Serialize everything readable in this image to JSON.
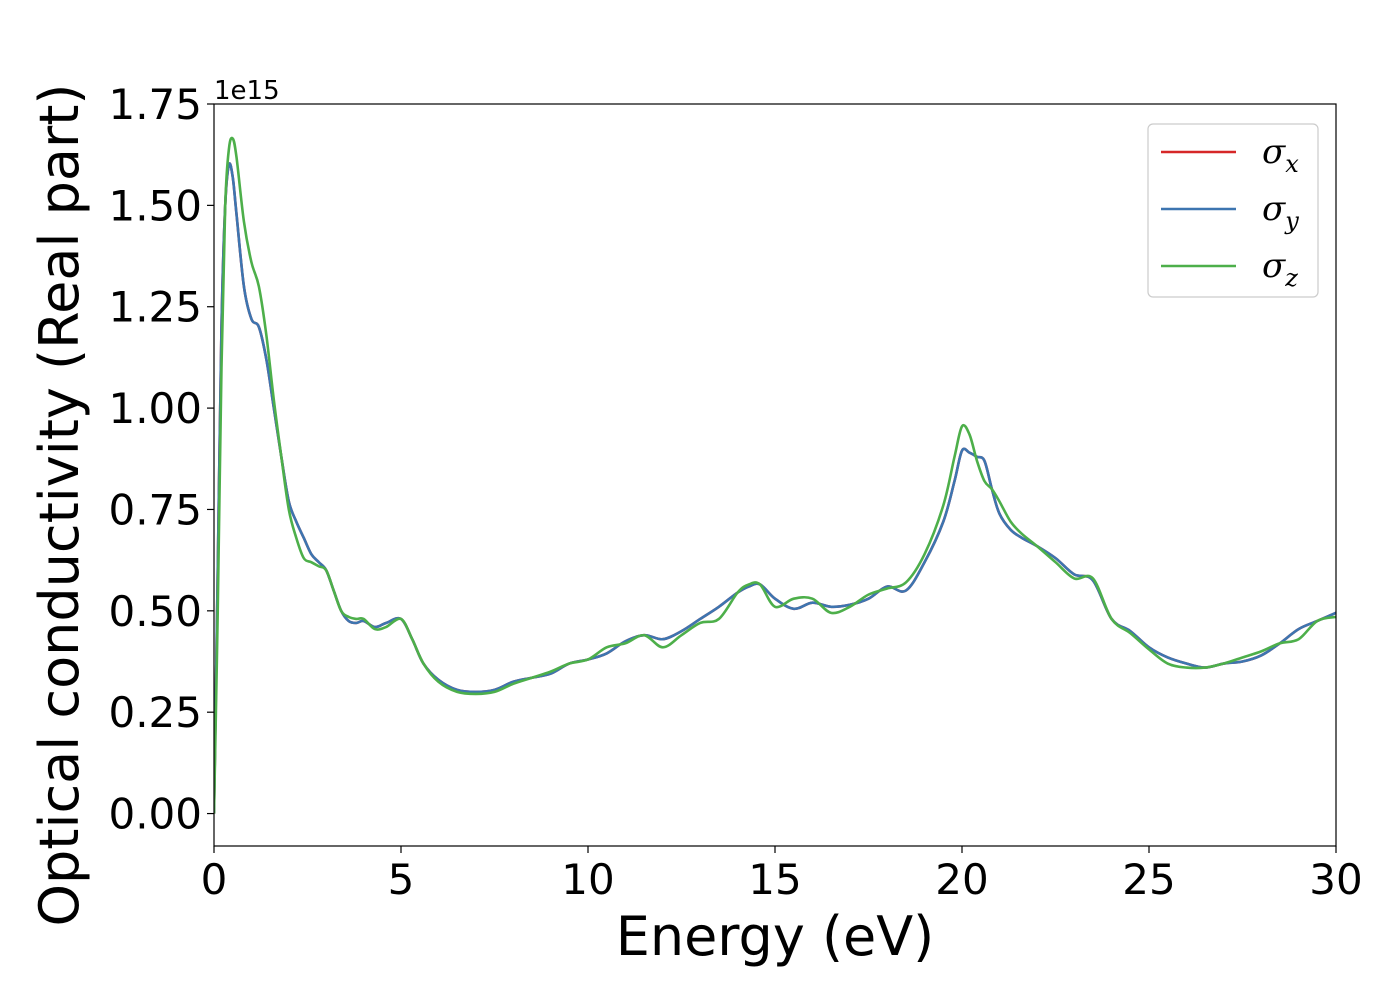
{
  "chart_data": {
    "type": "line",
    "xlabel": "Energy (eV)",
    "ylabel": "Optical conductivity (Real part)",
    "y_offset_label": "1e15",
    "xlim": [
      0,
      30
    ],
    "ylim": [
      -0.08,
      1.75
    ],
    "xticks": [
      0,
      5,
      10,
      15,
      20,
      25,
      30
    ],
    "yticks": [
      0.0,
      0.25,
      0.5,
      0.75,
      1.0,
      1.25,
      1.5,
      1.75
    ],
    "xtick_labels": [
      "0",
      "5",
      "10",
      "15",
      "20",
      "25",
      "30"
    ],
    "ytick_labels": [
      "0.00",
      "0.25",
      "0.50",
      "0.75",
      "1.00",
      "1.25",
      "1.50",
      "1.75"
    ],
    "grid": false,
    "legend_position": "top-right",
    "series": [
      {
        "name": "σx",
        "symbol": "σ",
        "subscript": "x",
        "color": "#d62728",
        "x": [
          0,
          0.1,
          0.2,
          0.3,
          0.4,
          0.5,
          0.6,
          0.8,
          1.0,
          1.2,
          1.4,
          1.6,
          1.8,
          2.0,
          2.2,
          2.4,
          2.6,
          2.8,
          3.0,
          3.2,
          3.4,
          3.6,
          3.8,
          4.0,
          4.3,
          4.6,
          5.0,
          5.3,
          5.6,
          6.0,
          6.5,
          7.0,
          7.5,
          8.0,
          8.5,
          9.0,
          9.5,
          10.0,
          10.5,
          11.0,
          11.5,
          12.0,
          12.5,
          13.0,
          13.5,
          14.0,
          14.3,
          14.6,
          15.0,
          15.5,
          16.0,
          16.5,
          17.0,
          17.5,
          18.0,
          18.5,
          19.0,
          19.5,
          19.8,
          20.0,
          20.2,
          20.4,
          20.6,
          20.8,
          21.0,
          21.3,
          21.6,
          22.0,
          22.5,
          23.0,
          23.5,
          24.0,
          24.5,
          25.0,
          25.5,
          26.0,
          26.5,
          27.0,
          27.5,
          28.0,
          28.5,
          29.0,
          29.5,
          30.0
        ],
        "y": [
          0.0,
          0.6,
          1.2,
          1.5,
          1.6,
          1.57,
          1.48,
          1.3,
          1.22,
          1.2,
          1.12,
          1.0,
          0.88,
          0.77,
          0.72,
          0.68,
          0.64,
          0.62,
          0.6,
          0.55,
          0.5,
          0.475,
          0.47,
          0.475,
          0.46,
          0.47,
          0.48,
          0.43,
          0.37,
          0.33,
          0.305,
          0.3,
          0.305,
          0.325,
          0.335,
          0.345,
          0.37,
          0.38,
          0.395,
          0.425,
          0.44,
          0.43,
          0.45,
          0.48,
          0.51,
          0.545,
          0.56,
          0.565,
          0.53,
          0.505,
          0.52,
          0.51,
          0.515,
          0.53,
          0.56,
          0.55,
          0.62,
          0.72,
          0.82,
          0.895,
          0.89,
          0.88,
          0.87,
          0.8,
          0.74,
          0.7,
          0.68,
          0.66,
          0.63,
          0.59,
          0.575,
          0.48,
          0.45,
          0.41,
          0.385,
          0.37,
          0.36,
          0.37,
          0.375,
          0.39,
          0.42,
          0.455,
          0.475,
          0.495
        ]
      },
      {
        "name": "σy",
        "symbol": "σ",
        "subscript": "y",
        "color": "#3d75b0",
        "x": [
          0,
          0.1,
          0.2,
          0.3,
          0.4,
          0.5,
          0.6,
          0.8,
          1.0,
          1.2,
          1.4,
          1.6,
          1.8,
          2.0,
          2.2,
          2.4,
          2.6,
          2.8,
          3.0,
          3.2,
          3.4,
          3.6,
          3.8,
          4.0,
          4.3,
          4.6,
          5.0,
          5.3,
          5.6,
          6.0,
          6.5,
          7.0,
          7.5,
          8.0,
          8.5,
          9.0,
          9.5,
          10.0,
          10.5,
          11.0,
          11.5,
          12.0,
          12.5,
          13.0,
          13.5,
          14.0,
          14.3,
          14.6,
          15.0,
          15.5,
          16.0,
          16.5,
          17.0,
          17.5,
          18.0,
          18.5,
          19.0,
          19.5,
          19.8,
          20.0,
          20.2,
          20.4,
          20.6,
          20.8,
          21.0,
          21.3,
          21.6,
          22.0,
          22.5,
          23.0,
          23.5,
          24.0,
          24.5,
          25.0,
          25.5,
          26.0,
          26.5,
          27.0,
          27.5,
          28.0,
          28.5,
          29.0,
          29.5,
          30.0
        ],
        "y": [
          0.0,
          0.6,
          1.2,
          1.5,
          1.6,
          1.57,
          1.48,
          1.3,
          1.22,
          1.2,
          1.12,
          1.0,
          0.88,
          0.77,
          0.72,
          0.68,
          0.64,
          0.62,
          0.6,
          0.55,
          0.5,
          0.475,
          0.47,
          0.475,
          0.46,
          0.47,
          0.48,
          0.43,
          0.37,
          0.33,
          0.305,
          0.3,
          0.305,
          0.325,
          0.335,
          0.345,
          0.37,
          0.38,
          0.395,
          0.425,
          0.44,
          0.43,
          0.45,
          0.48,
          0.51,
          0.545,
          0.56,
          0.565,
          0.53,
          0.505,
          0.52,
          0.51,
          0.515,
          0.53,
          0.56,
          0.55,
          0.62,
          0.72,
          0.82,
          0.895,
          0.89,
          0.88,
          0.87,
          0.8,
          0.74,
          0.7,
          0.68,
          0.66,
          0.63,
          0.59,
          0.575,
          0.48,
          0.45,
          0.41,
          0.385,
          0.37,
          0.36,
          0.37,
          0.375,
          0.39,
          0.42,
          0.455,
          0.475,
          0.495
        ]
      },
      {
        "name": "σz",
        "symbol": "σ",
        "subscript": "z",
        "color": "#4daf4a",
        "x": [
          0,
          0.1,
          0.2,
          0.3,
          0.4,
          0.5,
          0.6,
          0.8,
          1.0,
          1.2,
          1.4,
          1.6,
          1.8,
          2.0,
          2.2,
          2.4,
          2.6,
          2.8,
          3.0,
          3.2,
          3.4,
          3.6,
          3.8,
          4.0,
          4.3,
          4.6,
          5.0,
          5.3,
          5.6,
          6.0,
          6.5,
          7.0,
          7.5,
          8.0,
          8.5,
          9.0,
          9.5,
          10.0,
          10.5,
          11.0,
          11.5,
          12.0,
          12.5,
          13.0,
          13.5,
          14.0,
          14.3,
          14.6,
          15.0,
          15.5,
          16.0,
          16.5,
          17.0,
          17.5,
          18.0,
          18.5,
          19.0,
          19.5,
          19.8,
          20.0,
          20.2,
          20.4,
          20.6,
          20.8,
          21.0,
          21.3,
          21.6,
          22.0,
          22.5,
          23.0,
          23.5,
          24.0,
          24.5,
          25.0,
          25.5,
          26.0,
          26.5,
          27.0,
          27.5,
          28.0,
          28.5,
          29.0,
          29.5,
          30.0
        ],
        "y": [
          0.0,
          0.5,
          1.1,
          1.5,
          1.64,
          1.665,
          1.62,
          1.46,
          1.36,
          1.3,
          1.18,
          1.02,
          0.88,
          0.75,
          0.68,
          0.63,
          0.62,
          0.61,
          0.6,
          0.55,
          0.5,
          0.485,
          0.48,
          0.48,
          0.455,
          0.46,
          0.48,
          0.43,
          0.37,
          0.325,
          0.3,
          0.295,
          0.3,
          0.32,
          0.335,
          0.35,
          0.37,
          0.38,
          0.41,
          0.42,
          0.44,
          0.41,
          0.44,
          0.47,
          0.48,
          0.545,
          0.565,
          0.565,
          0.51,
          0.53,
          0.53,
          0.495,
          0.51,
          0.54,
          0.555,
          0.57,
          0.64,
          0.76,
          0.88,
          0.955,
          0.935,
          0.87,
          0.82,
          0.8,
          0.77,
          0.72,
          0.69,
          0.66,
          0.62,
          0.58,
          0.58,
          0.48,
          0.445,
          0.405,
          0.37,
          0.36,
          0.36,
          0.37,
          0.385,
          0.4,
          0.42,
          0.43,
          0.475,
          0.485
        ]
      }
    ]
  }
}
